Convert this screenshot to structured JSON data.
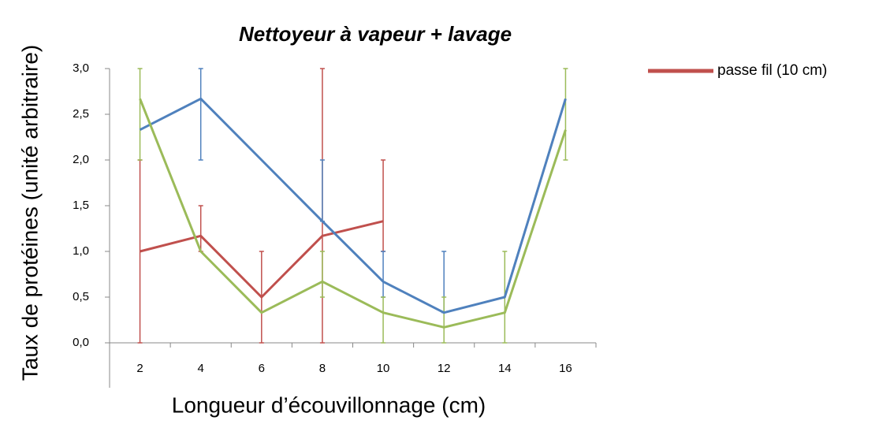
{
  "chart_data": {
    "type": "line",
    "title": "Nettoyeur à vapeur + lavage",
    "x_label": "Longueur d’écouvillonnage (cm)",
    "y_label": "Taux de protéines (unité arbitraire)",
    "categories": [
      "2",
      "4",
      "6",
      "8",
      "10",
      "12",
      "14",
      "16"
    ],
    "ylim": [
      0,
      3
    ],
    "yticks": [
      {
        "value": 0,
        "label": "0,0"
      },
      {
        "value": 0.5,
        "label": "0,5"
      },
      {
        "value": 1,
        "label": "1,0"
      },
      {
        "value": 1.5,
        "label": "1,5"
      },
      {
        "value": 2,
        "label": "2,0"
      },
      {
        "value": 2.5,
        "label": "2,5"
      },
      {
        "value": 3,
        "label": "3,0"
      }
    ],
    "grid": false,
    "legend": "top-right",
    "series": [
      {
        "name": "passe fil (10 cm)",
        "color": "#c0504d",
        "values": [
          1.0,
          1.17,
          0.5,
          1.17,
          1.33,
          null,
          null,
          null
        ],
        "error_minus": [
          1.0,
          0.17,
          0.5,
          1.17,
          0.33,
          null,
          null,
          null
        ],
        "error_plus": [
          1.0,
          0.33,
          0.5,
          1.83,
          0.67,
          null,
          null,
          null
        ]
      },
      {
        "color": "#4f81bd",
        "values": [
          2.33,
          2.67,
          2.0,
          1.33,
          0.67,
          0.33,
          0.5,
          2.67
        ],
        "error_minus": [
          0,
          0.67,
          0,
          0,
          0.17,
          0,
          0,
          0
        ],
        "error_plus": [
          0,
          0.33,
          0,
          0.67,
          0.33,
          0.67,
          0,
          0
        ]
      },
      {
        "color": "#9bbb59",
        "values": [
          2.67,
          1.0,
          0.33,
          0.67,
          0.33,
          0.17,
          0.33,
          2.33
        ],
        "error_minus": [
          0.67,
          0,
          0,
          0.17,
          0.33,
          0.17,
          0.33,
          0.33
        ],
        "error_plus": [
          0.33,
          0,
          0,
          0.33,
          0.17,
          0.33,
          0.67,
          0.67
        ]
      }
    ]
  }
}
